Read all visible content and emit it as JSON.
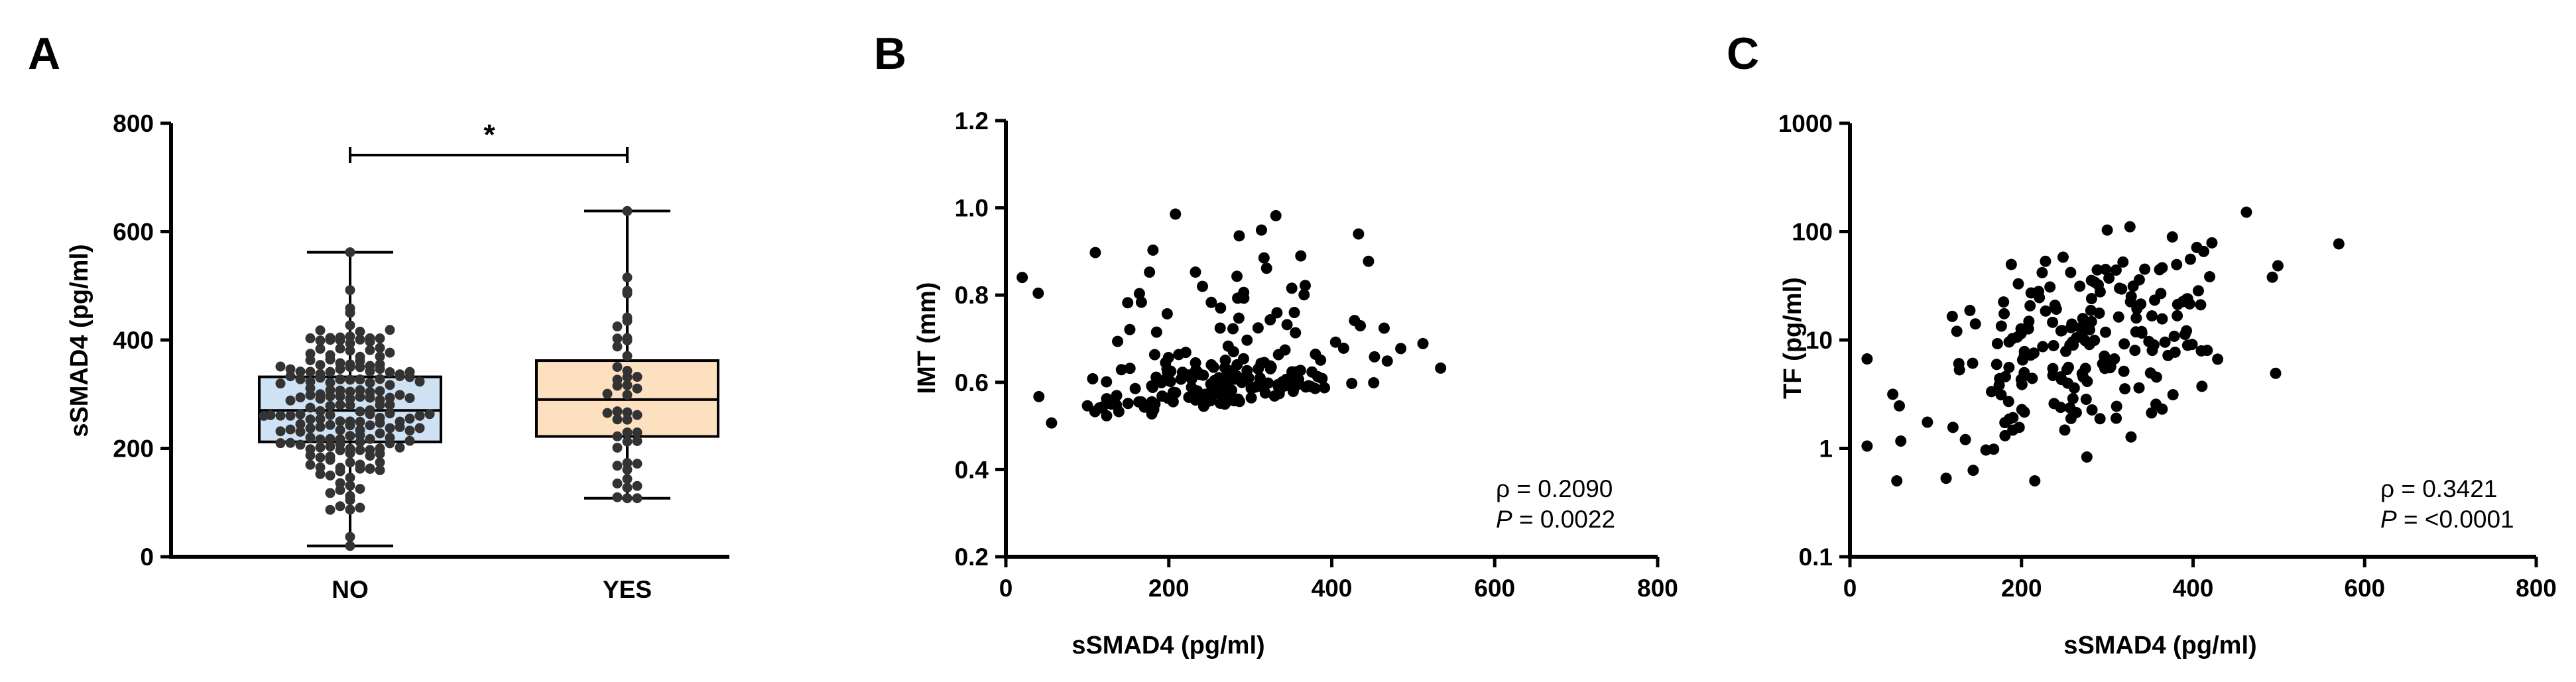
{
  "figure": {
    "panel_labels": [
      "A",
      "B",
      "C"
    ]
  },
  "chart_data": [
    {
      "panel": "A",
      "type": "box",
      "categories": [
        "NO",
        "YES"
      ],
      "ylabel": "sSMAD4 (pg/ml)",
      "xlabel": "",
      "ylim": [
        0,
        800
      ],
      "yticks": [
        "0",
        "200",
        "400",
        "600",
        "800"
      ],
      "significance": {
        "label": "*",
        "between": [
          "NO",
          "YES"
        ]
      },
      "colors": {
        "NO": "#cfe2f3",
        "YES": "#fde0c0",
        "dots": "#333333"
      },
      "boxes": [
        {
          "name": "NO",
          "min": 20,
          "q1": 212,
          "median": 270,
          "q3": 332,
          "max": 562,
          "n": 190
        },
        {
          "name": "YES",
          "min": 108,
          "q1": 222,
          "median": 290,
          "q3": 362,
          "max": 638,
          "n": 45
        }
      ]
    },
    {
      "panel": "B",
      "type": "scatter",
      "xlabel": "sSMAD4 (pg/ml)",
      "ylabel": "IMT (mm)",
      "xlim": [
        0,
        800
      ],
      "ylim": [
        0.2,
        1.2
      ],
      "xticks": [
        "0",
        "200",
        "400",
        "600",
        "800"
      ],
      "yticks": [
        "0.2",
        "0.4",
        "0.6",
        "0.8",
        "1.0",
        "1.2"
      ],
      "stats": {
        "rho_label": "ρ = 0.2090",
        "p_label": "P",
        "p_value": "= 0.0022"
      },
      "n_points": 210
    },
    {
      "panel": "C",
      "type": "scatter",
      "yscale": "log",
      "xlabel": "sSMAD4 (pg/ml)",
      "ylabel": "TF (pg/ml)",
      "xlim": [
        0,
        800
      ],
      "ylim": [
        0.1,
        1000
      ],
      "xticks": [
        "0",
        "200",
        "400",
        "600",
        "800"
      ],
      "yticks": [
        "0.1",
        "1",
        "10",
        "100",
        "1000"
      ],
      "stats": {
        "rho_label": "ρ = 0.3421",
        "p_label": "P",
        "p_value": "= <0.0001"
      },
      "n_points": 210
    }
  ]
}
